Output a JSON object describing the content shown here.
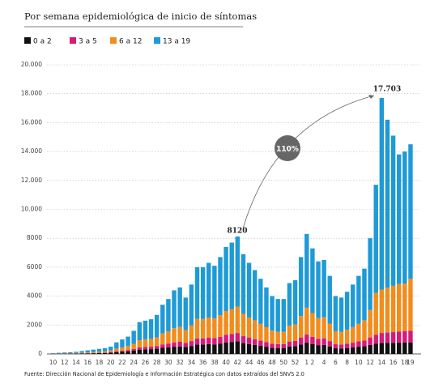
{
  "chart_data": {
    "type": "stacked_bar",
    "title": "Por semana epidemiológica de inicio de síntomas",
    "source": "Fuente: Dirección Nacional de Epidemiología e Información Estratégica con datos extraídos del SNVS 2.0",
    "annotations": [
      "8120",
      "17.703",
      "110%"
    ],
    "categories": [
      "10",
      null,
      "12",
      null,
      "14",
      null,
      "16",
      null,
      "18",
      null,
      "20",
      null,
      "22",
      null,
      "24",
      null,
      "26",
      null,
      "28",
      null,
      "30",
      null,
      "32",
      null,
      "34",
      null,
      "36",
      null,
      "38",
      null,
      "40",
      null,
      "42",
      null,
      "44",
      null,
      "46",
      null,
      "48",
      null,
      "50",
      null,
      "52",
      null,
      "1",
      "2",
      null,
      "4",
      null,
      "6",
      null,
      "8",
      null,
      "10",
      null,
      "12",
      null,
      "14",
      null,
      "16",
      null,
      "18",
      "19"
    ],
    "series": [
      {
        "name": "0 a 2",
        "color": "#111111",
        "values": [
          10,
          15,
          20,
          20,
          25,
          30,
          40,
          50,
          60,
          70,
          90,
          130,
          160,
          190,
          240,
          300,
          320,
          330,
          360,
          420,
          450,
          500,
          520,
          480,
          550,
          650,
          650,
          680,
          660,
          720,
          800,
          830,
          880,
          750,
          680,
          620,
          560,
          500,
          430,
          410,
          410,
          520,
          540,
          660,
          780,
          690,
          610,
          620,
          520,
          390,
          380,
          410,
          450,
          500,
          530,
          620,
          700,
          750,
          760,
          770,
          780,
          790,
          800
        ]
      },
      {
        "name": "3 a 5",
        "color": "#d6197a",
        "values": [
          5,
          5,
          10,
          10,
          10,
          15,
          20,
          20,
          25,
          30,
          40,
          60,
          70,
          80,
          110,
          150,
          160,
          170,
          190,
          240,
          270,
          300,
          320,
          280,
          340,
          420,
          420,
          440,
          430,
          470,
          520,
          540,
          570,
          480,
          440,
          400,
          360,
          320,
          280,
          270,
          270,
          340,
          360,
          460,
          560,
          500,
          440,
          450,
          370,
          280,
          270,
          300,
          330,
          370,
          400,
          520,
          620,
          700,
          720,
          740,
          760,
          780,
          800
        ]
      },
      {
        "name": "6 a 12",
        "color": "#f28c1c",
        "values": [
          10,
          15,
          20,
          25,
          35,
          45,
          55,
          65,
          75,
          90,
          110,
          180,
          220,
          270,
          350,
          500,
          520,
          540,
          600,
          760,
          850,
          980,
          1030,
          880,
          1080,
          1350,
          1350,
          1400,
          1370,
          1500,
          1650,
          1720,
          1820,
          1540,
          1400,
          1300,
          1160,
          1030,
          900,
          850,
          850,
          1100,
          1140,
          1500,
          1860,
          1640,
          1430,
          1460,
          1210,
          900,
          870,
          960,
          1080,
          1210,
          1400,
          1900,
          2900,
          3000,
          3100,
          3200,
          3300,
          3300,
          3600
        ]
      },
      {
        "name": "13 a 19",
        "color": "#1e9ad6",
        "values": [
          25,
          45,
          50,
          65,
          80,
          110,
          135,
          165,
          190,
          210,
          260,
          430,
          550,
          660,
          900,
          1250,
          1300,
          1360,
          1550,
          1980,
          2230,
          2620,
          2730,
          2260,
          2830,
          3580,
          3580,
          3780,
          3640,
          4010,
          4430,
          4610,
          4850,
          4130,
          3780,
          3480,
          3120,
          2750,
          2390,
          2270,
          2270,
          2940,
          3060,
          4080,
          5100,
          4470,
          3920,
          3970,
          3300,
          2430,
          2380,
          2630,
          2940,
          3320,
          3570,
          4960,
          7480,
          13253,
          11620,
          10390,
          8960,
          9130,
          9300
        ]
      }
    ],
    "ylim": [
      0,
      20000
    ],
    "yticks": [
      0,
      2000,
      4000,
      6000,
      8000,
      {
        "value": 10000,
        "label": "10.000"
      },
      {
        "value": 12000,
        "label": "12.000"
      },
      {
        "value": 14000,
        "label": "14.000"
      },
      {
        "value": 16000,
        "label": "16.000"
      },
      {
        "value": 18000,
        "label": "18.000"
      },
      {
        "value": 20000,
        "label": "20.000"
      }
    ],
    "grid": true
  }
}
